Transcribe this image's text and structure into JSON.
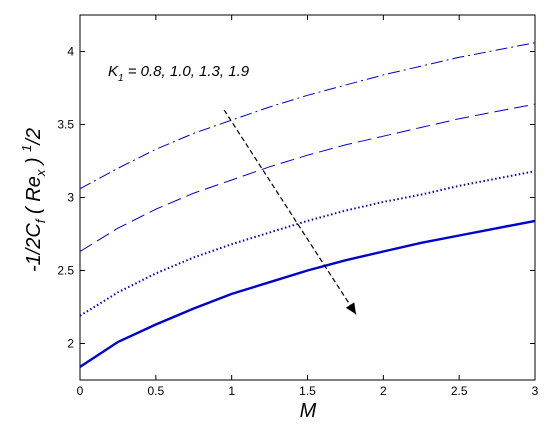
{
  "chart_data": {
    "type": "line",
    "xlabel": "M",
    "ylabel": {
      "main": "-1/2C",
      "sub1": "f",
      "open": " ( Re",
      "sub2": "x",
      "close": " ) ",
      "sup": "1",
      "tail": "/2"
    },
    "xlim": [
      0,
      3
    ],
    "ylim": [
      1.75,
      4.25
    ],
    "xticks": [
      "0",
      "0.5",
      "1",
      "1.5",
      "2",
      "2.5",
      "3"
    ],
    "yticks": [
      "2",
      "2.5",
      "3",
      "3.5",
      "4"
    ],
    "grid": false,
    "annotation": {
      "prefix": "K",
      "sub": "1",
      "text": " = 0.8, 1.0, 1.3, 1.9",
      "arrow_from": [
        0.95,
        3.6
      ],
      "arrow_to": [
        1.82,
        2.2
      ]
    },
    "line_color": "#0000cc",
    "x": [
      0,
      0.25,
      0.5,
      0.75,
      1.0,
      1.25,
      1.5,
      1.75,
      2.0,
      2.25,
      2.5,
      2.75,
      3.0
    ],
    "series": [
      {
        "style": "dashdot",
        "values": [
          3.06,
          3.2,
          3.33,
          3.44,
          3.53,
          3.62,
          3.7,
          3.77,
          3.84,
          3.9,
          3.96,
          4.01,
          4.06
        ]
      },
      {
        "style": "dashed",
        "values": [
          2.63,
          2.79,
          2.92,
          3.03,
          3.12,
          3.21,
          3.29,
          3.36,
          3.42,
          3.48,
          3.54,
          3.59,
          3.64
        ]
      },
      {
        "style": "dotted",
        "values": [
          2.19,
          2.35,
          2.48,
          2.59,
          2.68,
          2.76,
          2.84,
          2.91,
          2.97,
          3.02,
          3.08,
          3.13,
          3.18
        ]
      },
      {
        "style": "solid",
        "values": [
          1.84,
          2.01,
          2.13,
          2.24,
          2.34,
          2.42,
          2.5,
          2.57,
          2.63,
          2.69,
          2.74,
          2.79,
          2.84
        ]
      }
    ]
  }
}
